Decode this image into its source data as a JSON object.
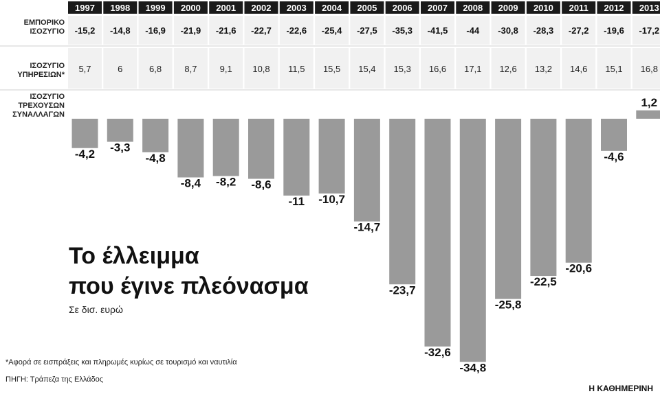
{
  "chart_data": {
    "type": "bar",
    "categories": [
      "1997",
      "1998",
      "1999",
      "2000",
      "2001",
      "2002",
      "2003",
      "2004",
      "2005",
      "2006",
      "2007",
      "2008",
      "2009",
      "2010",
      "2011",
      "2012",
      "2013"
    ],
    "rows": [
      {
        "name": "ΕΜΠΟΡΙΚΟ ΙΣΟΖΥΓΙΟ",
        "values": [
          "-15,2",
          "-14,8",
          "-16,9",
          "-21,9",
          "-21,6",
          "-22,7",
          "-22,6",
          "-25,4",
          "-27,5",
          "-35,3",
          "-41,5",
          "-44",
          "-30,8",
          "-28,3",
          "-27,2",
          "-19,6",
          "-17,2"
        ]
      },
      {
        "name": "ΙΣΟΖΥΓΙΟ ΥΠΗΡΕΣΙΩΝ*",
        "values": [
          "5,7",
          "6",
          "6,8",
          "8,7",
          "9,1",
          "10,8",
          "11,5",
          "15,5",
          "15,4",
          "15,3",
          "16,6",
          "17,1",
          "12,6",
          "13,2",
          "14,6",
          "15,1",
          "16,8"
        ]
      }
    ],
    "series": [
      {
        "name": "ΙΣΟΖΥΓΙΟ ΤΡΕΧΟΥΣΩΝ ΣΥΝΑΛΛΑΓΩΝ",
        "values": [
          -4.2,
          -3.3,
          -4.8,
          -8.4,
          -8.2,
          -8.6,
          -11,
          -10.7,
          -14.7,
          -23.7,
          -32.6,
          -34.8,
          -25.8,
          -22.5,
          -20.6,
          -4.6,
          1.2
        ],
        "labels": [
          "-4,2",
          "-3,3",
          "-4,8",
          "-8,4",
          "-8,2",
          "-8,6",
          "-11",
          "-10,7",
          "-14,7",
          "-23,7",
          "-32,6",
          "-34,8",
          "-25,8",
          "-22,5",
          "-20,6",
          "-4,6",
          "1,2"
        ]
      }
    ],
    "title": "Το έλλειμμα που έγινε πλεόνασμα",
    "subtitle": "Σε δισ. ευρώ",
    "footnote": "*Αφορά σε εισπράξεις και πληρωμές κυρίως σε τουρισμό και ναυτιλία",
    "source": "ΠΗΓΗ: Τράπεζα της Ελλάδος",
    "brand": "Η ΚΑΘΗΜΕΡΙΝΗ",
    "colors": {
      "header": "#1a1a1a",
      "row": "#f1f1f1",
      "bar": "#9a9a9a",
      "text": "#111111"
    }
  }
}
